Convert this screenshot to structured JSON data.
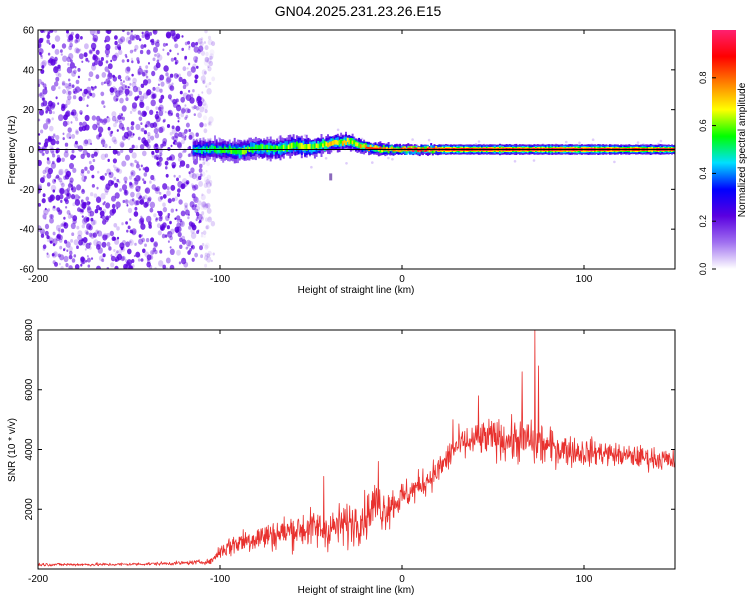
{
  "title": "GN04.2025.231.23.26.E15",
  "colors": {
    "snr_line": "#e8312e",
    "spectrogram_speckle": "#7a2be0",
    "axis": "#000000",
    "background": "#ffffff"
  },
  "chart_data": [
    {
      "type": "heatmap",
      "name": "spectrogram",
      "xlabel": "Height of straight line (km)",
      "ylabel": "Frequency (Hz)",
      "xlim": [
        -200,
        150
      ],
      "ylim": [
        -60,
        60
      ],
      "x_ticks": [
        -200,
        -100,
        0,
        100
      ],
      "y_ticks": [
        -60,
        -40,
        -20,
        0,
        20,
        40,
        60
      ],
      "x_tick_labels": [
        "-200",
        "-100",
        "0",
        "100"
      ],
      "y_tick_labels": [
        "-60",
        "-40",
        "-20",
        "0",
        "20",
        "40",
        "60"
      ],
      "noise_region_x": [
        -200,
        -110
      ],
      "colorbar": {
        "label": "Normalized spectral amplitude",
        "range": [
          0,
          1
        ],
        "ticks": [
          0.0,
          0.2,
          0.4,
          0.6,
          0.8
        ],
        "tick_labels": [
          "0.0",
          "0.2",
          "0.4",
          "0.6",
          "0.8"
        ],
        "colormap": [
          "#ffffff",
          "#a070f0",
          "#5a00e0",
          "#0000ff",
          "#00e0ff",
          "#00ff00",
          "#ffff00",
          "#ff8000",
          "#ff0000",
          "#ff2070"
        ]
      },
      "signal_trace": {
        "x": [
          -115,
          -100,
          -90,
          -80,
          -70,
          -60,
          -50,
          -40,
          -30,
          -20,
          -10,
          0,
          20,
          40,
          60,
          80,
          100,
          120,
          150
        ],
        "freq": [
          0,
          0,
          -1,
          1,
          0,
          2,
          1,
          3,
          4,
          1,
          0,
          0,
          0,
          0,
          0,
          0,
          0,
          0,
          0
        ],
        "half_width": [
          5,
          5,
          5,
          5,
          5,
          5,
          5,
          4,
          4,
          3,
          3,
          2.5,
          2.5,
          2.5,
          2.5,
          2.5,
          2.5,
          2.5,
          2.5
        ],
        "peak_amplitude": [
          0.45,
          0.5,
          0.55,
          0.55,
          0.55,
          0.6,
          0.6,
          0.65,
          0.65,
          0.7,
          0.75,
          0.85,
          0.9,
          0.9,
          0.9,
          0.9,
          0.9,
          0.85,
          0.85
        ]
      }
    },
    {
      "type": "line",
      "name": "snr",
      "xlabel": "Height of straight line (km)",
      "ylabel": "SNR (10 * v/v)",
      "xlim": [
        -200,
        150
      ],
      "ylim": [
        0,
        8000
      ],
      "x_ticks": [
        -200,
        -100,
        0,
        100
      ],
      "y_ticks": [
        2000,
        4000,
        6000,
        8000
      ],
      "x_tick_labels": [
        "-200",
        "-100",
        "0",
        "100"
      ],
      "y_tick_labels": [
        "2000",
        "4000",
        "6000",
        "8000"
      ],
      "series": [
        {
          "color": "#e8312e",
          "envelope": {
            "x": [
              -200,
              -180,
              -160,
              -140,
              -120,
              -105,
              -100,
              -90,
              -80,
              -70,
              -60,
              -50,
              -40,
              -30,
              -20,
              -15,
              -10,
              -5,
              0,
              10,
              20,
              30,
              40,
              50,
              60,
              65,
              70,
              75,
              80,
              90,
              100,
              110,
              120,
              130,
              140,
              150
            ],
            "mean": [
              150,
              150,
              150,
              170,
              200,
              250,
              600,
              900,
              1050,
              1150,
              1300,
              1350,
              1350,
              1500,
              1750,
              2200,
              2000,
              2200,
              2400,
              2800,
              3300,
              4100,
              4300,
              4400,
              4300,
              4300,
              4300,
              4200,
              4100,
              4000,
              3900,
              3900,
              3800,
              3750,
              3700,
              3600
            ],
            "spread": [
              100,
              100,
              100,
              100,
              120,
              150,
              500,
              800,
              900,
              950,
              1100,
              1200,
              1300,
              1400,
              1400,
              1450,
              1400,
              1200,
              1000,
              900,
              900,
              1000,
              1100,
              1200,
              1300,
              1400,
              1500,
              1500,
              1200,
              1000,
              900,
              800,
              700,
              700,
              700,
              700
            ],
            "peaks": [
              {
                "x": 42,
                "y": 5800
              },
              {
                "x": 66,
                "y": 6600
              },
              {
                "x": 73,
                "y": 8050
              },
              {
                "x": 75,
                "y": 6800
              },
              {
                "x": 28,
                "y": 5000
              },
              {
                "x": -13,
                "y": 3600
              },
              {
                "x": -43,
                "y": 3100
              }
            ]
          }
        }
      ]
    }
  ]
}
